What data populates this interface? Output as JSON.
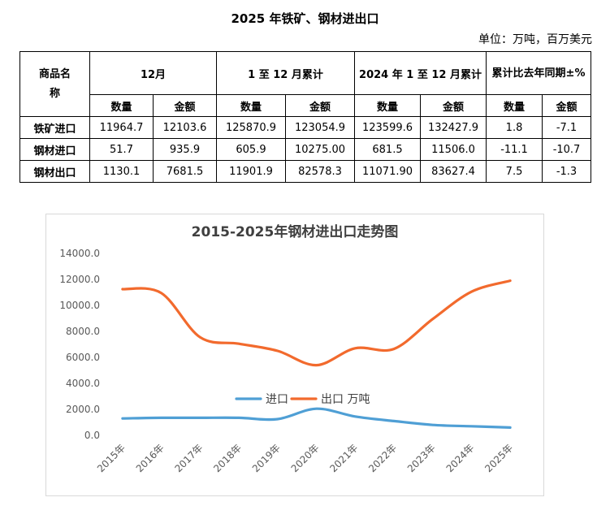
{
  "page": {
    "title": "2025 年铁矿、钢材进出口",
    "unit": "单位：万吨，百万美元"
  },
  "table": {
    "headers": {
      "name": "商品名称",
      "dec": "12月",
      "ytd": "1 至 12 月累计",
      "prev": "2024 年 1 至 12 月累计",
      "yoy": "累计比去年同期±%",
      "qty": "数量",
      "amt": "金额"
    },
    "rows": [
      {
        "name": "铁矿进口",
        "c1": "11964.7",
        "c2": "12103.6",
        "c3": "125870.9",
        "c4": "123054.9",
        "c5": "123599.6",
        "c6": "132427.9",
        "c7": "1.8",
        "c8": "-7.1"
      },
      {
        "name": "钢材进口",
        "c1": "51.7",
        "c2": "935.9",
        "c3": "605.9",
        "c4": "10275.00",
        "c5": "681.5",
        "c6": "11506.0",
        "c7": "-11.1",
        "c8": "-10.7"
      },
      {
        "name": "钢材出口",
        "c1": "1130.1",
        "c2": "7681.5",
        "c3": "11901.9",
        "c4": "82578.3",
        "c5": "11071.90",
        "c6": "83627.4",
        "c7": "7.5",
        "c8": "-1.3"
      }
    ]
  },
  "chart_data": {
    "type": "line",
    "title": "2015-2025年钢材进出口走势图",
    "categories": [
      "2015年",
      "2016年",
      "2017年",
      "2018年",
      "2019年",
      "2020年",
      "2021年",
      "2022年",
      "2023年",
      "2024年",
      "2025年"
    ],
    "series": [
      {
        "name": "进口",
        "color": "#4f9fd5",
        "values": [
          1300,
          1350,
          1350,
          1350,
          1250,
          2050,
          1450,
          1100,
          800,
          700,
          600
        ]
      },
      {
        "name": "出口 万吨",
        "color": "#f26a2d",
        "values": [
          11250,
          10950,
          7550,
          7050,
          6500,
          5400,
          6700,
          6650,
          8950,
          11050,
          11900
        ]
      }
    ],
    "yticks": [
      "0.0",
      "2000.0",
      "4000.0",
      "6000.0",
      "8000.0",
      "10000.0",
      "12000.0",
      "14000.0"
    ],
    "ylim": [
      0,
      14000
    ],
    "legend": "center"
  }
}
